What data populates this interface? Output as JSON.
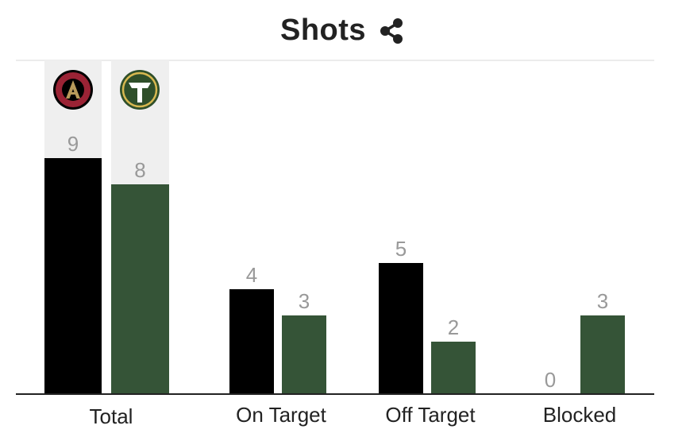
{
  "header": {
    "title": "Shots",
    "share_icon": "share-icon"
  },
  "teams": [
    {
      "name": "Atlanta United FC",
      "logo_icon": "atlanta-united-logo-icon",
      "color": "#000000"
    },
    {
      "name": "Portland Timbers",
      "logo_icon": "portland-timbers-logo-icon",
      "color": "#355437"
    }
  ],
  "chart_data": {
    "type": "bar",
    "title": "Shots",
    "categories": [
      "Total",
      "On Target",
      "Off Target",
      "Blocked"
    ],
    "series": [
      {
        "values": [
          9,
          4,
          5,
          0
        ],
        "color": "#000000"
      },
      {
        "values": [
          8,
          3,
          2,
          3
        ],
        "color": "#355437"
      }
    ],
    "ylim": [
      0,
      9
    ],
    "grid": false,
    "highlighted_category": "Total",
    "highlight_color": "#efefef"
  }
}
